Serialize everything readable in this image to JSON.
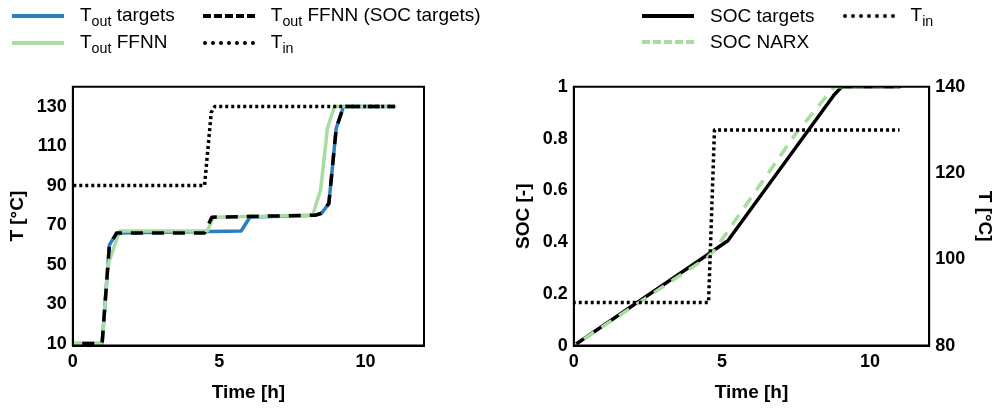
{
  "chart_data": [
    {
      "type": "line",
      "xlabel": "Time [h]",
      "ylabel": "T [°C]",
      "xlim": [
        0,
        12
      ],
      "xticks": [
        0,
        5,
        10
      ],
      "ylim": [
        9,
        140
      ],
      "yticks": [
        10,
        30,
        50,
        70,
        90,
        110,
        130
      ],
      "grid": false,
      "legend": "top",
      "series": [
        {
          "name": "T$_{out}$ targets",
          "color": "#2e7ebf",
          "line_style": "solid",
          "x": [
            0,
            1,
            1.25,
            1.5,
            5.75,
            6.05,
            8.3,
            8.5,
            8.75,
            9.0,
            9.25,
            11
          ],
          "values": [
            10,
            10,
            60,
            66,
            67,
            74,
            75,
            76,
            81,
            119,
            130,
            130
          ]
        },
        {
          "name": "T$_{out}$ FFNN",
          "color": "#a8dca0",
          "line_style": "solid",
          "x": [
            0,
            1,
            1.2,
            1.6,
            4.6,
            4.8,
            8.2,
            8.47,
            8.7,
            8.94,
            11
          ],
          "values": [
            10,
            10,
            50,
            67,
            67,
            74,
            75,
            88,
            119,
            130,
            130
          ]
        },
        {
          "name": "T$_{out}$ FFNN (SOC targets)",
          "color": "#000000",
          "line_style": "dashed",
          "x": [
            0,
            1,
            1.25,
            1.5,
            4.5,
            4.75,
            8.3,
            8.5,
            8.75,
            9.0,
            9.25,
            11
          ],
          "values": [
            10,
            10,
            60,
            66,
            66,
            74,
            75,
            76,
            81,
            119,
            130,
            130
          ]
        },
        {
          "name": "T$_{in}$",
          "color": "#000000",
          "line_style": "dotted",
          "x": [
            0,
            4.5,
            4.73,
            4.85,
            11
          ],
          "values": [
            90,
            90,
            127,
            130,
            130
          ]
        }
      ]
    },
    {
      "type": "line",
      "xlabel": "Time [h]",
      "ylabel": "SOC [-]",
      "y2label": "T [°C]",
      "xlim": [
        0,
        12
      ],
      "xticks": [
        0,
        5,
        10
      ],
      "ylim": [
        0,
        1
      ],
      "yticks": [
        0,
        0.2,
        0.4,
        0.6,
        0.8,
        1
      ],
      "y2lim": [
        80,
        140
      ],
      "y2ticks": [
        80,
        100,
        120,
        140
      ],
      "grid": false,
      "legend": "top",
      "series": [
        {
          "name": "SOC targets",
          "color": "#000000",
          "line_style": "solid",
          "x": [
            0,
            4.5,
            5.2,
            8.8,
            9.05,
            11
          ],
          "values": [
            0,
            0.35,
            0.405,
            0.97,
            1,
            1
          ]
        },
        {
          "name": "SOC NARX",
          "color": "#a8dca0",
          "line_style": "dashed",
          "x": [
            0,
            4.5,
            4.76,
            7.5,
            8.8,
            11
          ],
          "values": [
            0,
            0.34,
            0.37,
            0.82,
            1,
            1
          ]
        },
        {
          "name": "T$_{in}$",
          "color": "#000000",
          "line_style": "dotted",
          "axis": "y2",
          "x": [
            0,
            4.55,
            4.75,
            11
          ],
          "values": [
            90,
            90,
            130,
            130
          ]
        }
      ]
    }
  ]
}
